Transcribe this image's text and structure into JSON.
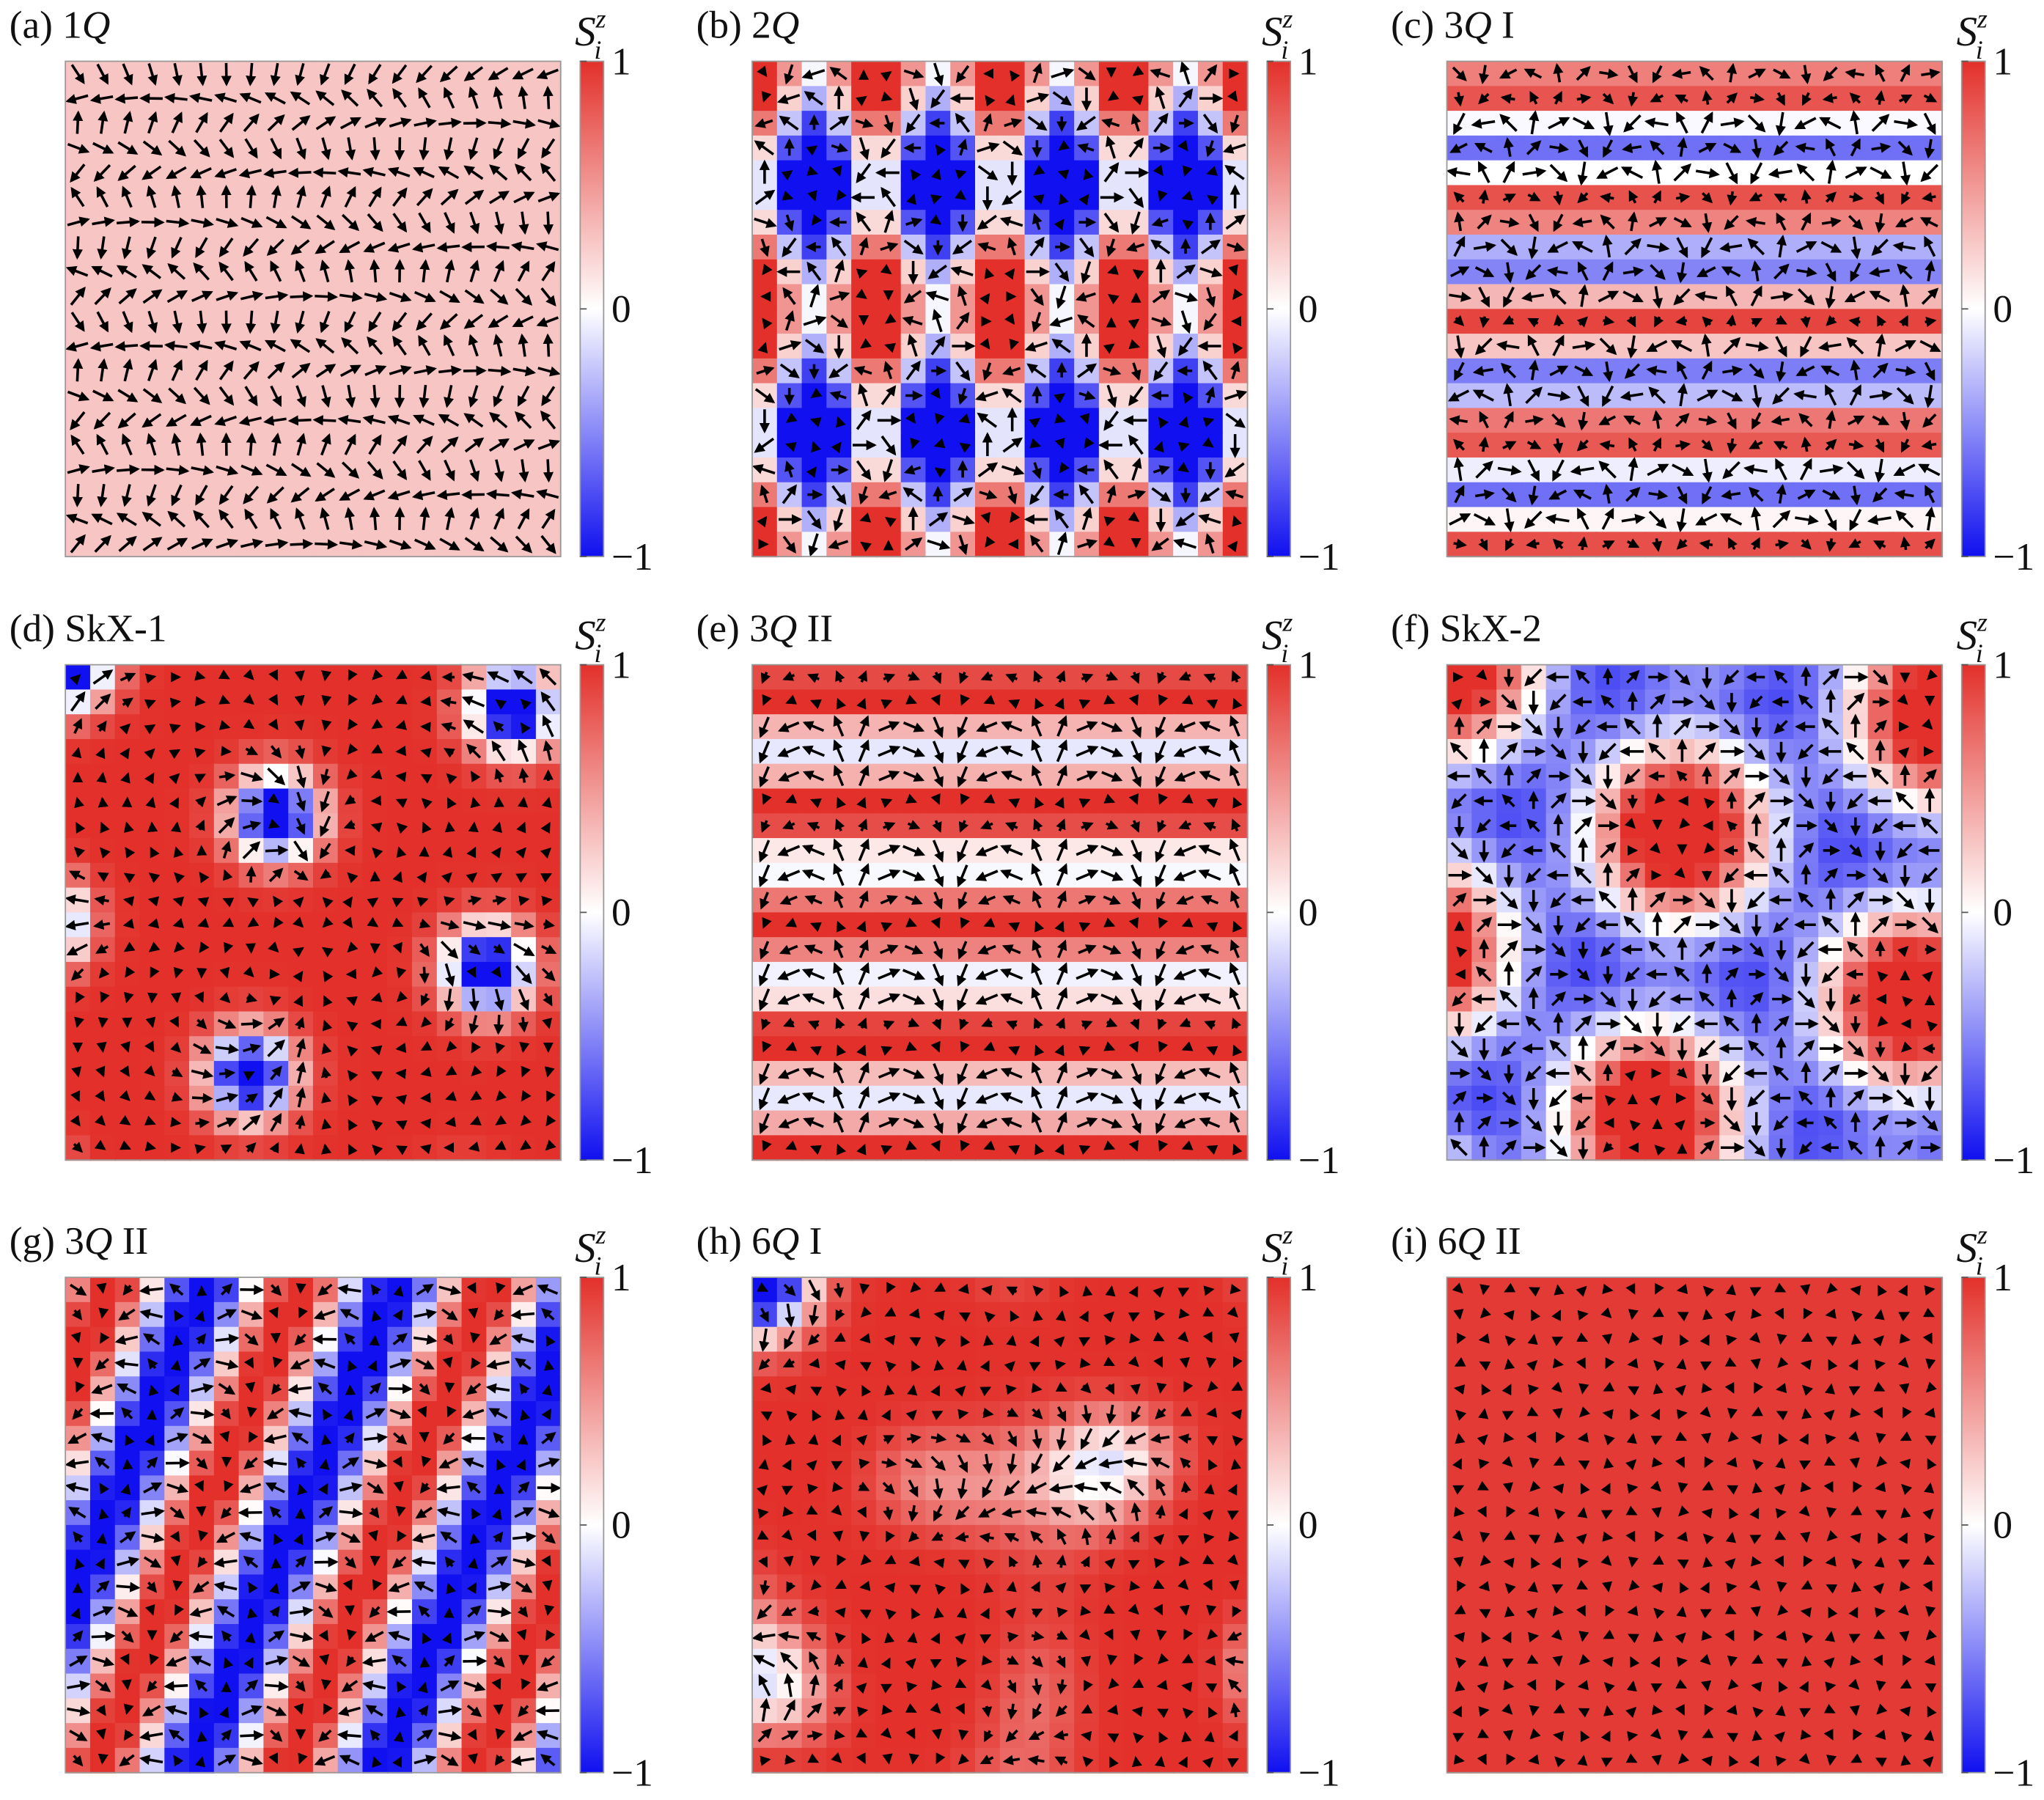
{
  "panels": [
    {
      "label": [
        "(a) 1",
        "Q"
      ]
    },
    {
      "label": [
        "(b) 2",
        "Q"
      ]
    },
    {
      "label": [
        "(c) 3",
        "Q",
        " I"
      ]
    },
    {
      "label": [
        "(d) SkX-1"
      ]
    },
    {
      "label": [
        "(e) 3",
        "Q",
        " II"
      ]
    },
    {
      "label": [
        "(f) SkX-2"
      ]
    },
    {
      "label": [
        "(g) 3",
        "Q",
        " II"
      ]
    },
    {
      "label": [
        "(h) 6",
        "Q",
        " I"
      ]
    },
    {
      "label": [
        "(i) 6",
        "Q",
        " II"
      ]
    }
  ],
  "colorbar": {
    "symbol": "S",
    "subscript": "i",
    "superscript": "z",
    "lim": [
      -1,
      1
    ],
    "ticks": [
      {
        "value": -1,
        "label": "−1"
      },
      0,
      1
    ]
  }
}
